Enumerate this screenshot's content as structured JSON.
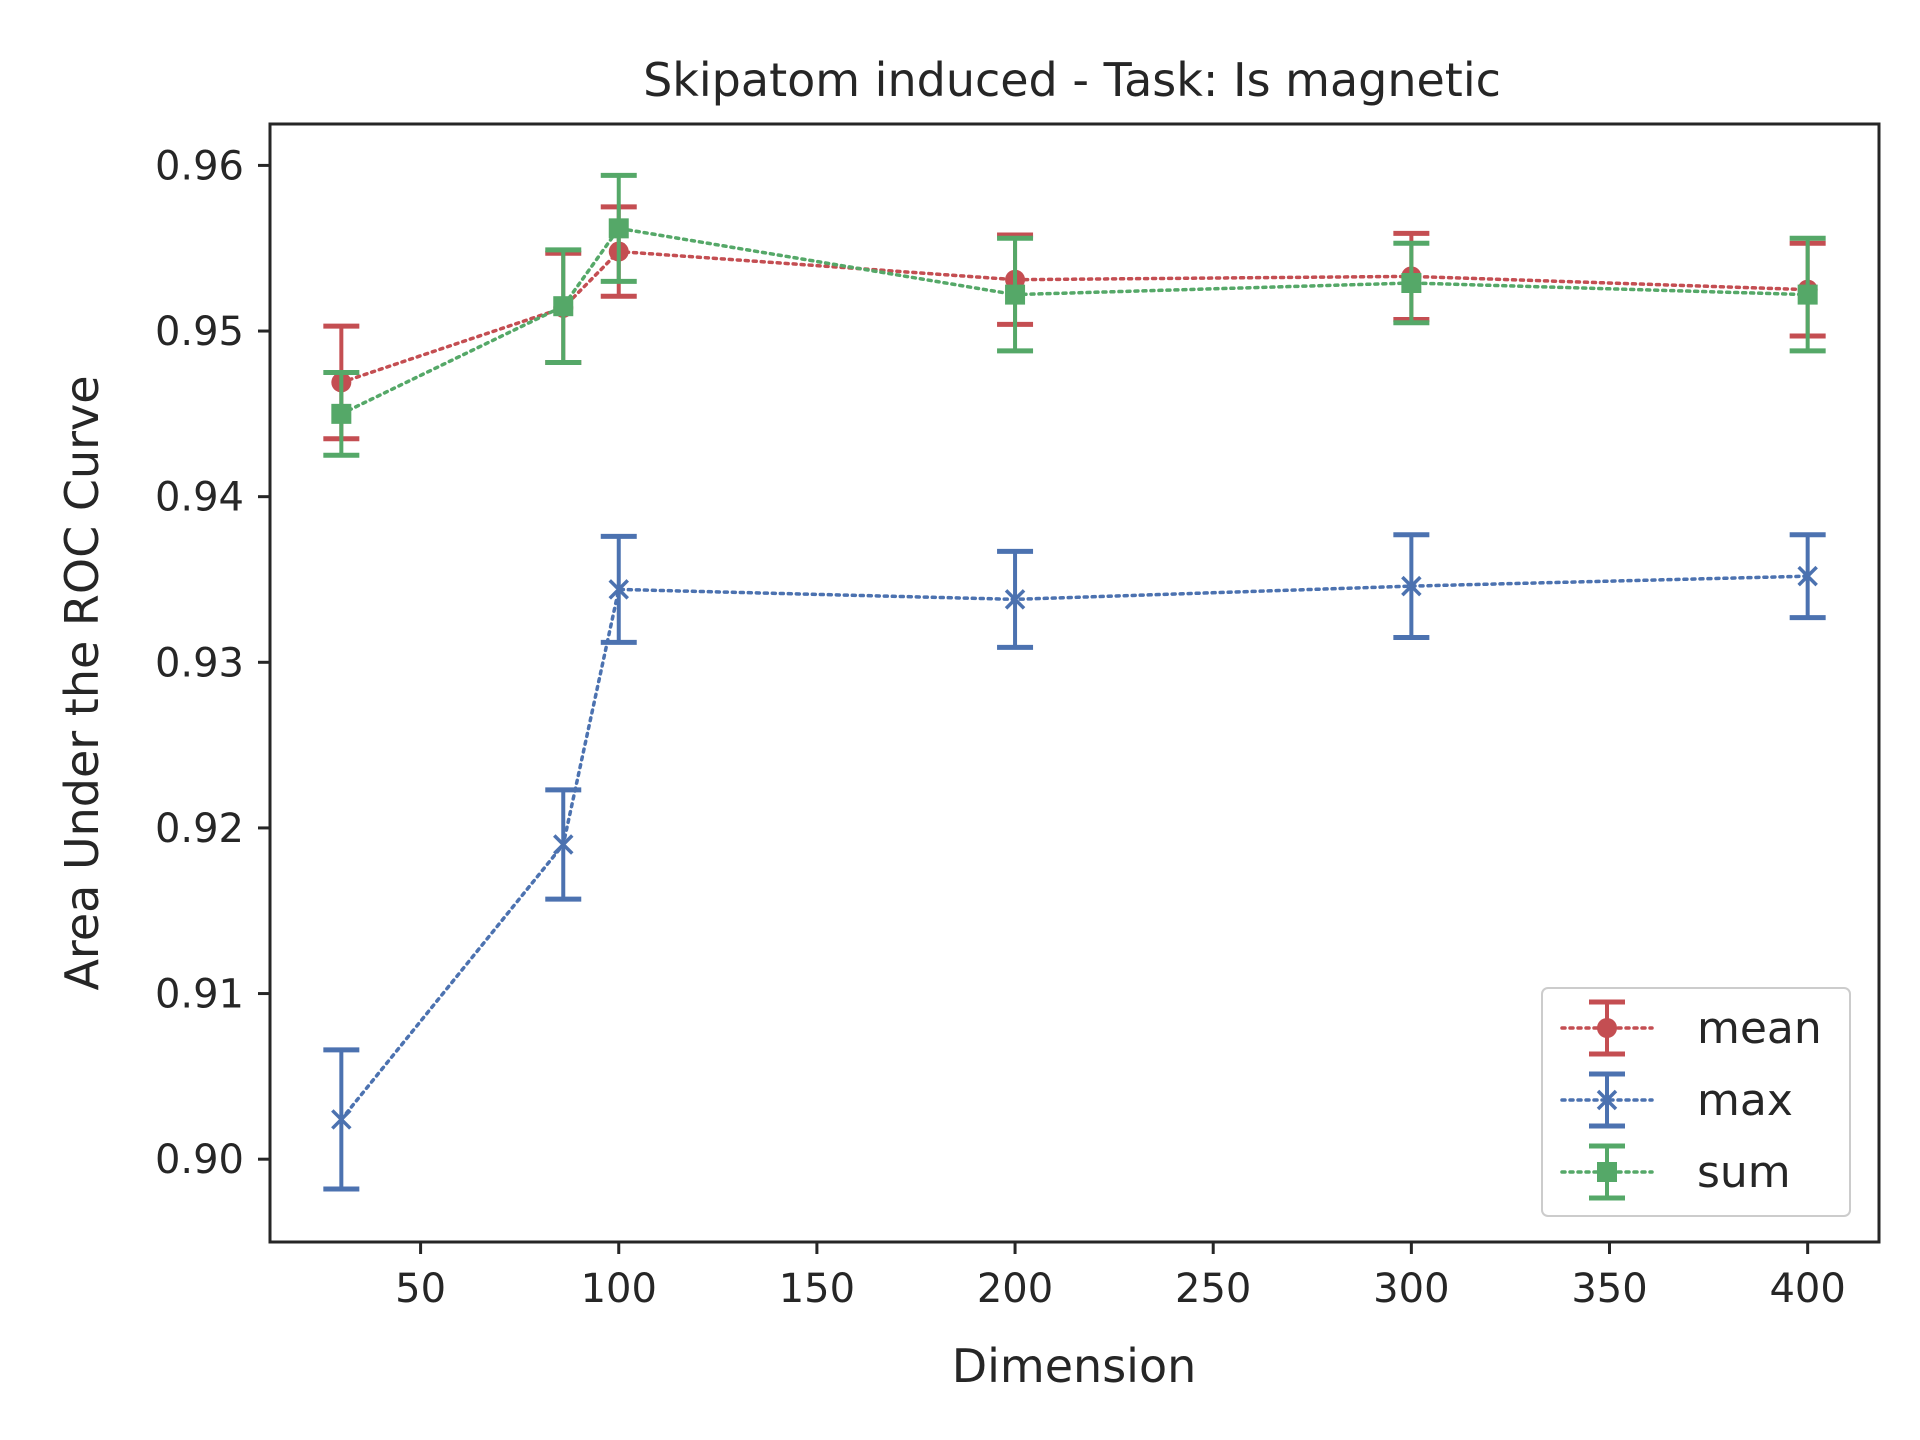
{
  "chart_data": {
    "type": "line",
    "title": "Skipatom induced - Task: Is magnetic",
    "xlabel": "Dimension",
    "ylabel": "Area Under the ROC Curve",
    "xlim": [
      12,
      418
    ],
    "ylim": [
      0.895,
      0.9625
    ],
    "xticks": [
      50,
      100,
      150,
      200,
      250,
      300,
      350,
      400
    ],
    "yticks": [
      0.9,
      0.91,
      0.92,
      0.93,
      0.94,
      0.95,
      0.96
    ],
    "xtick_labels": [
      "50",
      "100",
      "150",
      "200",
      "250",
      "300",
      "350",
      "400"
    ],
    "ytick_labels": [
      "0.90",
      "0.91",
      "0.92",
      "0.93",
      "0.94",
      "0.95",
      "0.96"
    ],
    "grid": false,
    "legend": "lower-right",
    "x": [
      30,
      86,
      100,
      200,
      300,
      400
    ],
    "series": [
      {
        "name": "mean",
        "color": "#c44e52",
        "marker": "circle",
        "values": [
          0.9469,
          0.9514,
          0.9548,
          0.9531,
          0.9533,
          0.9525
        ],
        "err": [
          0.0034,
          0.0033,
          0.0027,
          0.0027,
          0.0026,
          0.0028
        ]
      },
      {
        "name": "max",
        "color": "#4c72b0",
        "marker": "x",
        "values": [
          0.9024,
          0.919,
          0.9344,
          0.9338,
          0.9346,
          0.9352
        ],
        "err": [
          0.0042,
          0.0033,
          0.0032,
          0.0029,
          0.0031,
          0.0025
        ]
      },
      {
        "name": "sum",
        "color": "#55a868",
        "marker": "square",
        "values": [
          0.945,
          0.9515,
          0.9562,
          0.9522,
          0.9529,
          0.9522
        ],
        "err": [
          0.0025,
          0.0034,
          0.0032,
          0.0034,
          0.0024,
          0.0034
        ]
      }
    ]
  }
}
